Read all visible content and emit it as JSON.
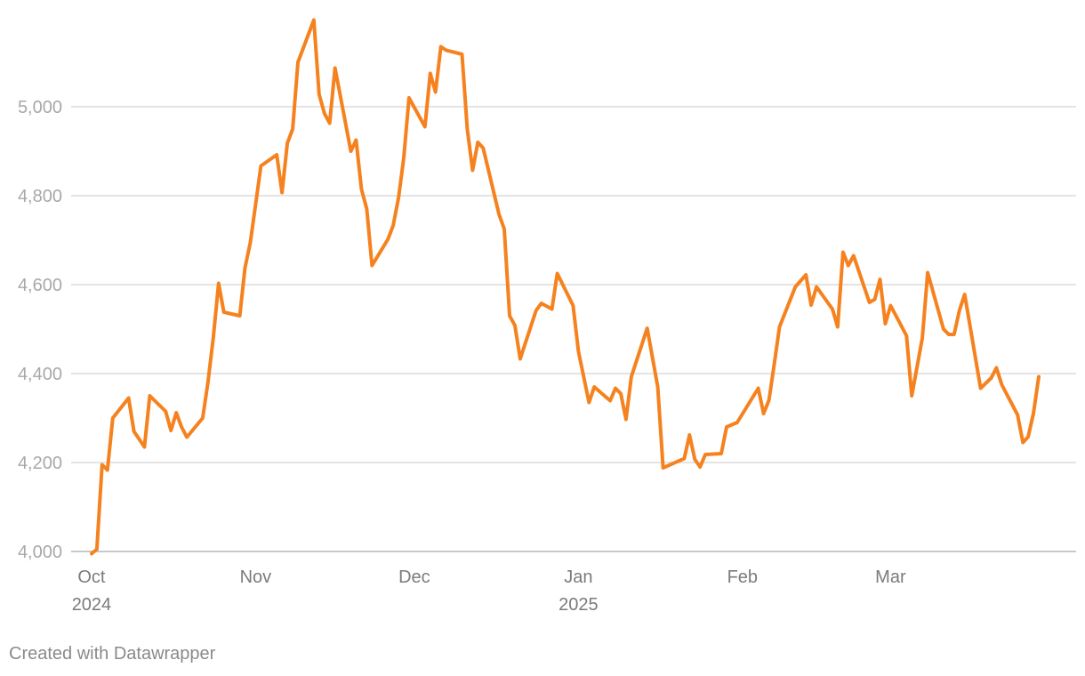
{
  "footer": {
    "credit": "Created with Datawrapper"
  },
  "chart_data": {
    "type": "line",
    "title": "",
    "xlabel": "",
    "ylabel": "",
    "ylim": [
      4000,
      5200
    ],
    "yticks": [
      4000,
      4200,
      4400,
      4600,
      4800,
      5000
    ],
    "ytick_labels": [
      "4,000",
      "4,200",
      "4,400",
      "4,600",
      "4,800",
      "5,000"
    ],
    "xlim": [
      "2024-09-30",
      "2025-03-28"
    ],
    "xticks": [
      {
        "date": "2024-10-01",
        "label": "Oct",
        "sublabel": "2024"
      },
      {
        "date": "2024-11-01",
        "label": "Nov",
        "sublabel": ""
      },
      {
        "date": "2024-12-01",
        "label": "Dec",
        "sublabel": ""
      },
      {
        "date": "2025-01-01",
        "label": "Jan",
        "sublabel": "2025"
      },
      {
        "date": "2025-02-01",
        "label": "Feb",
        "sublabel": ""
      },
      {
        "date": "2025-03-01",
        "label": "Mar",
        "sublabel": ""
      }
    ],
    "grid": true,
    "legend": "none",
    "colors": {
      "line": "#f5821f",
      "grid": "#dcdcdc",
      "baseline": "#c8c8c8"
    },
    "series": [
      {
        "points": [
          [
            "2024-10-01",
            3995
          ],
          [
            "2024-10-02",
            4005
          ],
          [
            "2024-10-03",
            4195
          ],
          [
            "2024-10-04",
            4183
          ],
          [
            "2024-10-05",
            4300
          ],
          [
            "2024-10-08",
            4345
          ],
          [
            "2024-10-09",
            4270
          ],
          [
            "2024-10-11",
            4235
          ],
          [
            "2024-10-12",
            4350
          ],
          [
            "2024-10-15",
            4315
          ],
          [
            "2024-10-16",
            4272
          ],
          [
            "2024-10-17",
            4312
          ],
          [
            "2024-10-18",
            4280
          ],
          [
            "2024-10-19",
            4257
          ],
          [
            "2024-10-22",
            4300
          ],
          [
            "2024-10-23",
            4380
          ],
          [
            "2024-10-24",
            4480
          ],
          [
            "2024-10-25",
            4603
          ],
          [
            "2024-10-26",
            4538
          ],
          [
            "2024-10-29",
            4530
          ],
          [
            "2024-10-30",
            4638
          ],
          [
            "2024-10-31",
            4695
          ],
          [
            "2024-11-02",
            4867
          ],
          [
            "2024-11-05",
            4892
          ],
          [
            "2024-11-06",
            4807
          ],
          [
            "2024-11-07",
            4918
          ],
          [
            "2024-11-08",
            4950
          ],
          [
            "2024-11-09",
            5100
          ],
          [
            "2024-11-12",
            5195
          ],
          [
            "2024-11-13",
            5028
          ],
          [
            "2024-11-14",
            4985
          ],
          [
            "2024-11-15",
            4963
          ],
          [
            "2024-11-16",
            5087
          ],
          [
            "2024-11-19",
            4900
          ],
          [
            "2024-11-20",
            4925
          ],
          [
            "2024-11-21",
            4815
          ],
          [
            "2024-11-22",
            4770
          ],
          [
            "2024-11-23",
            4643
          ],
          [
            "2024-11-26",
            4702
          ],
          [
            "2024-11-27",
            4733
          ],
          [
            "2024-11-28",
            4795
          ],
          [
            "2024-11-29",
            4885
          ],
          [
            "2024-11-30",
            5020
          ],
          [
            "2024-12-03",
            4955
          ],
          [
            "2024-12-04",
            5075
          ],
          [
            "2024-12-05",
            5033
          ],
          [
            "2024-12-06",
            5135
          ],
          [
            "2024-12-07",
            5127
          ],
          [
            "2024-12-10",
            5118
          ],
          [
            "2024-12-11",
            4950
          ],
          [
            "2024-12-12",
            4857
          ],
          [
            "2024-12-13",
            4920
          ],
          [
            "2024-12-14",
            4907
          ],
          [
            "2024-12-17",
            4758
          ],
          [
            "2024-12-18",
            4725
          ],
          [
            "2024-12-19",
            4530
          ],
          [
            "2024-12-20",
            4508
          ],
          [
            "2024-12-21",
            4433
          ],
          [
            "2024-12-24",
            4542
          ],
          [
            "2024-12-25",
            4558
          ],
          [
            "2024-12-27",
            4545
          ],
          [
            "2024-12-28",
            4625
          ],
          [
            "2024-12-31",
            4553
          ],
          [
            "2025-01-01",
            4450
          ],
          [
            "2025-01-03",
            4335
          ],
          [
            "2025-01-04",
            4370
          ],
          [
            "2025-01-07",
            4339
          ],
          [
            "2025-01-08",
            4367
          ],
          [
            "2025-01-09",
            4355
          ],
          [
            "2025-01-10",
            4297
          ],
          [
            "2025-01-11",
            4393
          ],
          [
            "2025-01-14",
            4502
          ],
          [
            "2025-01-16",
            4370
          ],
          [
            "2025-01-17",
            4188
          ],
          [
            "2025-01-21",
            4209
          ],
          [
            "2025-01-22",
            4262
          ],
          [
            "2025-01-23",
            4207
          ],
          [
            "2025-01-24",
            4190
          ],
          [
            "2025-01-25",
            4218
          ],
          [
            "2025-01-28",
            4220
          ],
          [
            "2025-01-29",
            4280
          ],
          [
            "2025-01-31",
            4290
          ],
          [
            "2025-02-04",
            4367
          ],
          [
            "2025-02-05",
            4310
          ],
          [
            "2025-02-06",
            4340
          ],
          [
            "2025-02-07",
            4420
          ],
          [
            "2025-02-08",
            4505
          ],
          [
            "2025-02-11",
            4595
          ],
          [
            "2025-02-13",
            4622
          ],
          [
            "2025-02-14",
            4554
          ],
          [
            "2025-02-15",
            4595
          ],
          [
            "2025-02-18",
            4545
          ],
          [
            "2025-02-19",
            4505
          ],
          [
            "2025-02-20",
            4673
          ],
          [
            "2025-02-21",
            4643
          ],
          [
            "2025-02-22",
            4665
          ],
          [
            "2025-02-25",
            4560
          ],
          [
            "2025-02-26",
            4567
          ],
          [
            "2025-02-27",
            4612
          ],
          [
            "2025-02-28",
            4512
          ],
          [
            "2025-03-01",
            4553
          ],
          [
            "2025-03-04",
            4485
          ],
          [
            "2025-03-05",
            4350
          ],
          [
            "2025-03-07",
            4480
          ],
          [
            "2025-03-08",
            4627
          ],
          [
            "2025-03-11",
            4500
          ],
          [
            "2025-03-12",
            4488
          ],
          [
            "2025-03-13",
            4488
          ],
          [
            "2025-03-14",
            4542
          ],
          [
            "2025-03-15",
            4578
          ],
          [
            "2025-03-18",
            4367
          ],
          [
            "2025-03-20",
            4390
          ],
          [
            "2025-03-21",
            4413
          ],
          [
            "2025-03-22",
            4375
          ],
          [
            "2025-03-25",
            4307
          ],
          [
            "2025-03-26",
            4245
          ],
          [
            "2025-03-27",
            4258
          ],
          [
            "2025-03-28",
            4310
          ],
          [
            "2025-03-29",
            4393
          ]
        ]
      }
    ]
  }
}
